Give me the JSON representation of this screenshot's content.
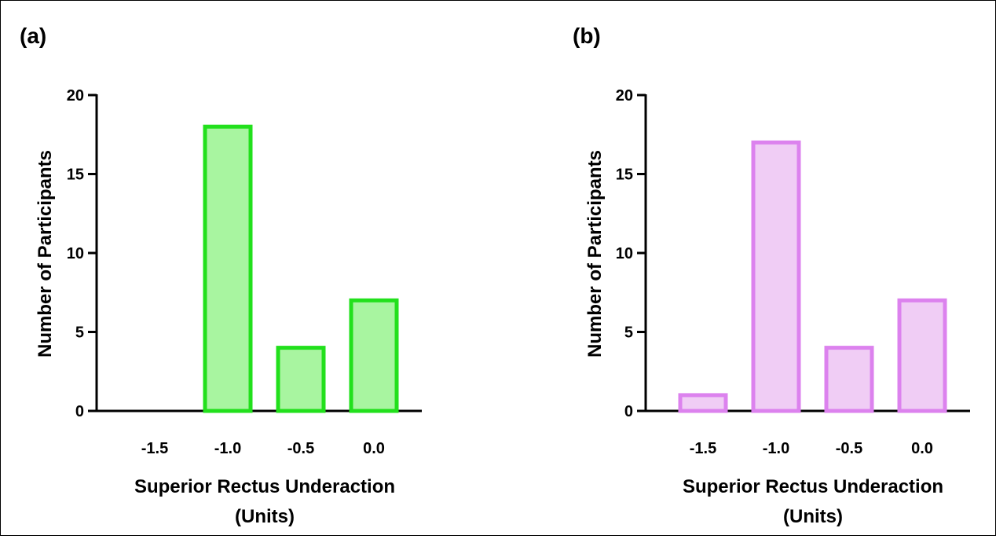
{
  "chart_data": [
    {
      "panel_label": "(a)",
      "type": "bar",
      "categories": [
        "-1.5",
        "-1.0",
        "-0.5",
        "0.0"
      ],
      "values": [
        0,
        18,
        4,
        7
      ],
      "ylabel": "Number of Participants",
      "xlabel_line1": "Superior Rectus Underaction",
      "xlabel_line2": "(Units)",
      "ylim": [
        0,
        20
      ],
      "yticks": [
        "0",
        "5",
        "10",
        "15",
        "20"
      ],
      "colors": {
        "fill": "#a8f5a0",
        "stroke": "#22e01c"
      }
    },
    {
      "panel_label": "(b)",
      "type": "bar",
      "categories": [
        "-1.5",
        "-1.0",
        "-0.5",
        "0.0"
      ],
      "values": [
        1,
        17,
        4,
        7
      ],
      "ylabel": "Number of Participants",
      "xlabel_line1": "Superior Rectus Underaction",
      "xlabel_line2": "(Units)",
      "ylim": [
        0,
        20
      ],
      "yticks": [
        "0",
        "5",
        "10",
        "15",
        "20"
      ],
      "colors": {
        "fill": "#f0cdf5",
        "stroke": "#dc82ee"
      }
    }
  ]
}
